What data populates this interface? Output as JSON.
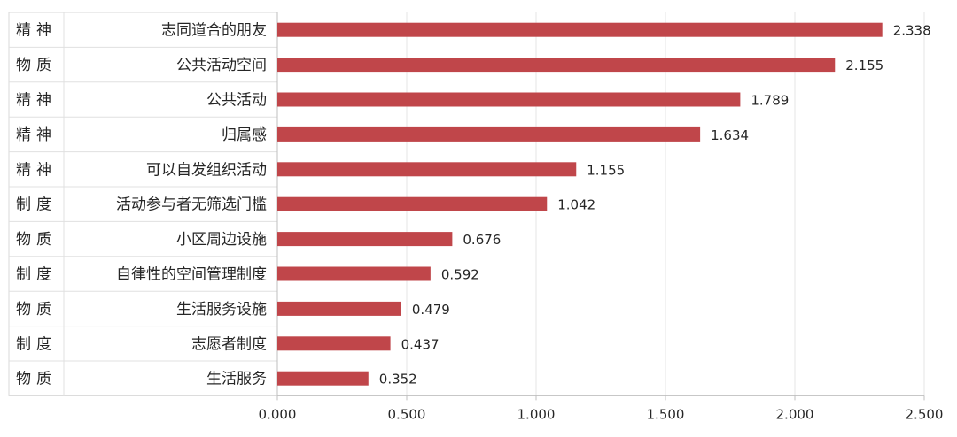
{
  "chart_data": {
    "type": "bar",
    "orientation": "horizontal",
    "groups": [
      "精神",
      "物质",
      "精神",
      "精神",
      "精神",
      "制度",
      "物质",
      "制度",
      "物质",
      "制度",
      "物质"
    ],
    "categories": [
      "志同道合的朋友",
      "公共活动空间",
      "公共活动",
      "归属感",
      "可以自发组织活动",
      "活动参与者无筛选门槛",
      "小区周边设施",
      "自律性的空间管理制度",
      "生活服务设施",
      "志愿者制度",
      "生活服务"
    ],
    "values": [
      2.338,
      2.155,
      1.789,
      1.634,
      1.155,
      1.042,
      0.676,
      0.592,
      0.479,
      0.437,
      0.352
    ],
    "value_labels": [
      "2.338",
      "2.155",
      "1.789",
      "1.634",
      "1.155",
      "1.042",
      "0.676",
      "0.592",
      "0.479",
      "0.437",
      "0.352"
    ],
    "xlim": [
      0,
      2.5
    ],
    "xticks": [
      "0.000",
      "0.500",
      "1.000",
      "1.500",
      "2.000",
      "2.500"
    ],
    "bar_color": "#c0464a",
    "grid": true,
    "title": "",
    "xlabel": "",
    "ylabel": ""
  }
}
